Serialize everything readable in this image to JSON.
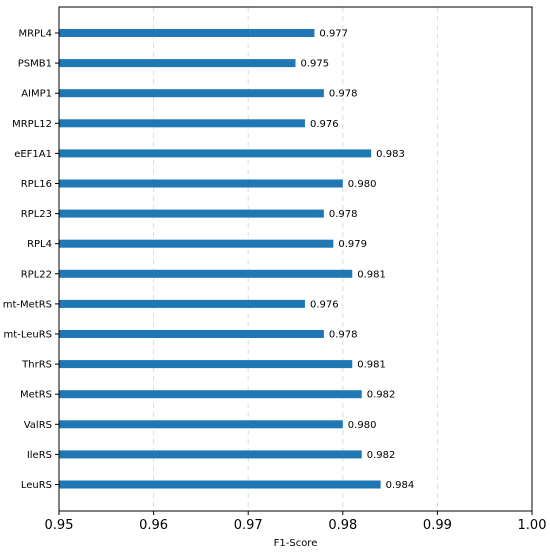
{
  "chart_data": {
    "type": "bar",
    "orientation": "horizontal",
    "title": "",
    "xlabel": "F1-Score",
    "ylabel": "",
    "xlim": [
      0.95,
      1.0
    ],
    "xticks": [
      "0.95",
      "0.96",
      "0.97",
      "0.98",
      "0.99",
      "1.00"
    ],
    "grid": "vertical dashed",
    "bar_color": "#1f77b4",
    "categories": [
      "MRPL4",
      "PSMB1",
      "AIMP1",
      "MRPL12",
      "eEF1A1",
      "RPL16",
      "RPL23",
      "RPL4",
      "RPL22",
      "mt-MetRS",
      "mt-LeuRS",
      "ThrRS",
      "MetRS",
      "ValRS",
      "IleRS",
      "LeuRS"
    ],
    "values": [
      0.977,
      0.975,
      0.978,
      0.976,
      0.983,
      0.98,
      0.978,
      0.979,
      0.981,
      0.976,
      0.978,
      0.981,
      0.982,
      0.98,
      0.982,
      0.984
    ],
    "data_labels": [
      "0.977",
      "0.975",
      "0.978",
      "0.976",
      "0.983",
      "0.980",
      "0.978",
      "0.979",
      "0.981",
      "0.976",
      "0.978",
      "0.981",
      "0.982",
      "0.980",
      "0.982",
      "0.984"
    ]
  }
}
